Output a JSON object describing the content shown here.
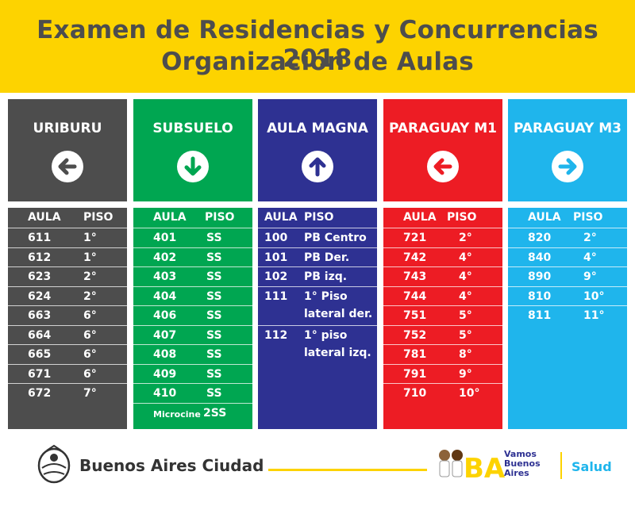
{
  "title_line1": "Examen de Residencias y Concurrencias 2018",
  "title_line2": "Organización de Aulas",
  "columns": [
    {
      "name": "URIBURU",
      "arrow": "left-arrow-icon",
      "color": "#4d4d4d",
      "headers": [
        "AULA",
        "PISO"
      ],
      "rows": [
        [
          "611",
          "1°"
        ],
        [
          "612",
          "1°"
        ],
        [
          "623",
          "2°"
        ],
        [
          "624",
          "2°"
        ],
        [
          "663",
          "6°"
        ],
        [
          "664",
          "6°"
        ],
        [
          "665",
          "6°"
        ],
        [
          "671",
          "6°"
        ],
        [
          "672",
          "7°"
        ]
      ]
    },
    {
      "name": "SUBSUELO",
      "arrow": "down-arrow-icon",
      "color": "#00a651",
      "headers": [
        "AULA",
        "PISO"
      ],
      "rows": [
        [
          "401",
          "SS"
        ],
        [
          "402",
          "SS"
        ],
        [
          "403",
          "SS"
        ],
        [
          "404",
          "SS"
        ],
        [
          "406",
          "SS"
        ],
        [
          "407",
          "SS"
        ],
        [
          "408",
          "SS"
        ],
        [
          "409",
          "SS"
        ],
        [
          "410",
          "SS"
        ]
      ],
      "extra": {
        "aula": "Microcine",
        "piso": "2SS"
      }
    },
    {
      "name": "AULA MAGNA",
      "arrow": "up-arrow-icon",
      "color": "#2e3192",
      "headers": [
        "AULA",
        "PISO"
      ],
      "rows": [
        [
          "100",
          "PB Centro"
        ],
        [
          "101",
          "PB Der."
        ],
        [
          "102",
          "PB izq."
        ]
      ],
      "tall_rows": [
        {
          "aula": "111",
          "piso_l1": "1° Piso",
          "piso_l2": "lateral der."
        },
        {
          "aula": "112",
          "piso_l1": "1° piso",
          "piso_l2": "lateral izq."
        }
      ]
    },
    {
      "name": "PARAGUAY M1",
      "arrow": "left-arrow-icon",
      "color": "#ed1c24",
      "headers": [
        "AULA",
        "PISO"
      ],
      "rows": [
        [
          "721",
          "2°"
        ],
        [
          "742",
          "4°"
        ],
        [
          "743",
          "4°"
        ],
        [
          "744",
          "4°"
        ],
        [
          "751",
          "5°"
        ],
        [
          "752",
          "5°"
        ],
        [
          "781",
          "8°"
        ],
        [
          "791",
          "9°"
        ],
        [
          "710",
          "10°"
        ]
      ]
    },
    {
      "name": "PARAGUAY M3",
      "arrow": "right-arrow-icon",
      "color": "#1fb5ec",
      "headers": [
        "AULA",
        "PISO"
      ],
      "rows": [
        [
          "820",
          "2°"
        ],
        [
          "840",
          "4°"
        ],
        [
          "890",
          "9°"
        ],
        [
          "810",
          "10°"
        ],
        [
          "811",
          "11°"
        ]
      ]
    }
  ],
  "footer": {
    "city": "Buenos Aires Ciudad",
    "vba_line1": "Vamos",
    "vba_line2": "Buenos",
    "vba_line3": "Aires",
    "ba_mark": "BA",
    "salud": "Salud"
  }
}
